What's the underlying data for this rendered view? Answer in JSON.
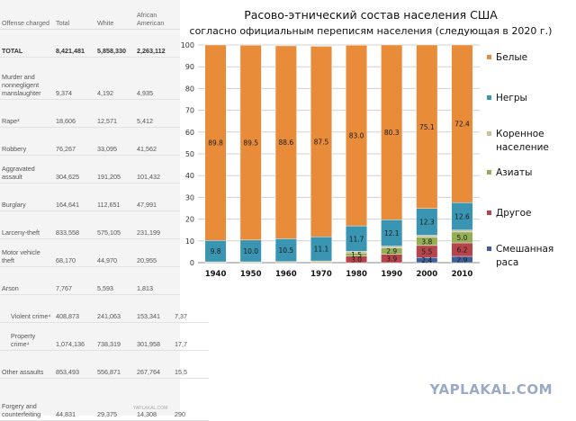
{
  "table": {
    "headers": [
      "Offense charged",
      "Total",
      "White",
      "African American",
      ""
    ],
    "rows": [
      {
        "label": "TOTAL",
        "cells": [
          "8,421,481",
          "5,858,330",
          "2,263,112",
          ""
        ],
        "total": true
      },
      {
        "label": "Murder and nonnegligent manslaughter",
        "cells": [
          "9,374",
          "4,192",
          "4,935",
          ""
        ]
      },
      {
        "label": "Rape³",
        "cells": [
          "18,606",
          "12,571",
          "5,412",
          ""
        ]
      },
      {
        "label": "Robbery",
        "cells": [
          "76,267",
          "33,095",
          "41,562",
          ""
        ]
      },
      {
        "label": "Aggravated assault",
        "cells": [
          "304,625",
          "191,205",
          "101,432",
          ""
        ]
      },
      {
        "label": "Burglary",
        "cells": [
          "164,641",
          "112,651",
          "47,991",
          ""
        ]
      },
      {
        "label": "Larceny-theft",
        "cells": [
          "833,558",
          "575,105",
          "231,199",
          ""
        ]
      },
      {
        "label": "Motor vehicle theft",
        "cells": [
          "68,170",
          "44,970",
          "20,955",
          ""
        ]
      },
      {
        "label": "Arson",
        "cells": [
          "7,767",
          "5,593",
          "1,813",
          ""
        ]
      },
      {
        "label": "Violent crime⁴",
        "cells": [
          "408,873",
          "241,063",
          "153,341",
          "7,37"
        ],
        "indent": true
      },
      {
        "label": "Property crime⁴",
        "cells": [
          "1,074,136",
          "738,319",
          "301,958",
          "17,7"
        ],
        "indent": true
      },
      {
        "label": "Other assaults",
        "cells": [
          "853,493",
          "556,871",
          "267,764",
          "15,5"
        ]
      },
      {
        "label": "Forgery and counterfeiting",
        "cells": [
          "44,831",
          "29,375",
          "14,308",
          "290"
        ]
      }
    ],
    "watermark": "YAPLAKAL.COM"
  },
  "chart_data": {
    "type": "bar",
    "stacked": true,
    "title": "Расово-этнический состав населения США",
    "subtitle": "согласно официальным переписям населения (следующая в 2020 г.)",
    "categories": [
      "1940",
      "1950",
      "1960",
      "1970",
      "1980",
      "1990",
      "2000",
      "2010"
    ],
    "ylim": [
      0,
      100
    ],
    "yticks": [
      0,
      10,
      20,
      30,
      40,
      50,
      60,
      70,
      80,
      90,
      100
    ],
    "grid": true,
    "legend_position": "right",
    "series": [
      {
        "name": "Смешанная раса",
        "color": "#3f5f9c",
        "values": [
          0,
          0,
          0,
          0,
          0,
          0,
          2.4,
          2.9
        ],
        "labels": [
          "",
          "",
          "",
          "",
          "",
          "",
          "2.4",
          "2.9"
        ]
      },
      {
        "name": "Другое",
        "color": "#b5454a",
        "values": [
          0,
          0,
          0,
          0,
          3.0,
          3.9,
          5.5,
          6.2
        ],
        "labels": [
          "",
          "",
          "",
          "",
          "3.0",
          "3.9",
          "5.5",
          "6.2"
        ]
      },
      {
        "name": "Азиаты",
        "color": "#93ae55",
        "values": [
          0,
          0,
          0,
          0,
          1.5,
          2.9,
          3.8,
          5.0
        ],
        "labels": [
          "",
          "",
          "",
          "",
          "1.5",
          "2.9",
          "3.8",
          "5.0"
        ]
      },
      {
        "name": "Коренное население",
        "color": "#ccc097",
        "values": [
          0.4,
          0.4,
          0.5,
          0.8,
          0.7,
          0.8,
          0.9,
          0.9
        ],
        "labels": [
          "",
          "",
          "",
          "",
          "",
          "",
          "",
          ""
        ]
      },
      {
        "name": "Негры",
        "color": "#3a95b2",
        "values": [
          9.8,
          10.0,
          10.5,
          11.1,
          11.7,
          12.1,
          12.3,
          12.6
        ],
        "labels": [
          "9.8",
          "10.0",
          "10.5",
          "11.1",
          "11.7",
          "12.1",
          "12.3",
          "12.6"
        ]
      },
      {
        "name": "Белые",
        "color": "#e88c3a",
        "values": [
          89.8,
          89.5,
          88.6,
          87.5,
          83.0,
          80.3,
          75.1,
          72.4
        ],
        "labels": [
          "89.8",
          "89.5",
          "88.6",
          "87.5",
          "83.0",
          "80.3",
          "75.1",
          "72.4"
        ]
      }
    ],
    "legend_order": [
      "Белые",
      "Негры",
      "Коренное население",
      "Азиаты",
      "Другое",
      "Смешанная раса"
    ],
    "legend_text": {
      "Белые": [
        "Белые"
      ],
      "Негры": [
        "Негры"
      ],
      "Коренное население": [
        "Коренное",
        "население"
      ],
      "Азиаты": [
        "Азиаты"
      ],
      "Другое": [
        "Другое"
      ],
      "Смешанная раса": [
        "Смешанная",
        "раса"
      ]
    }
  },
  "watermark": "YAPLAKAL.COM"
}
